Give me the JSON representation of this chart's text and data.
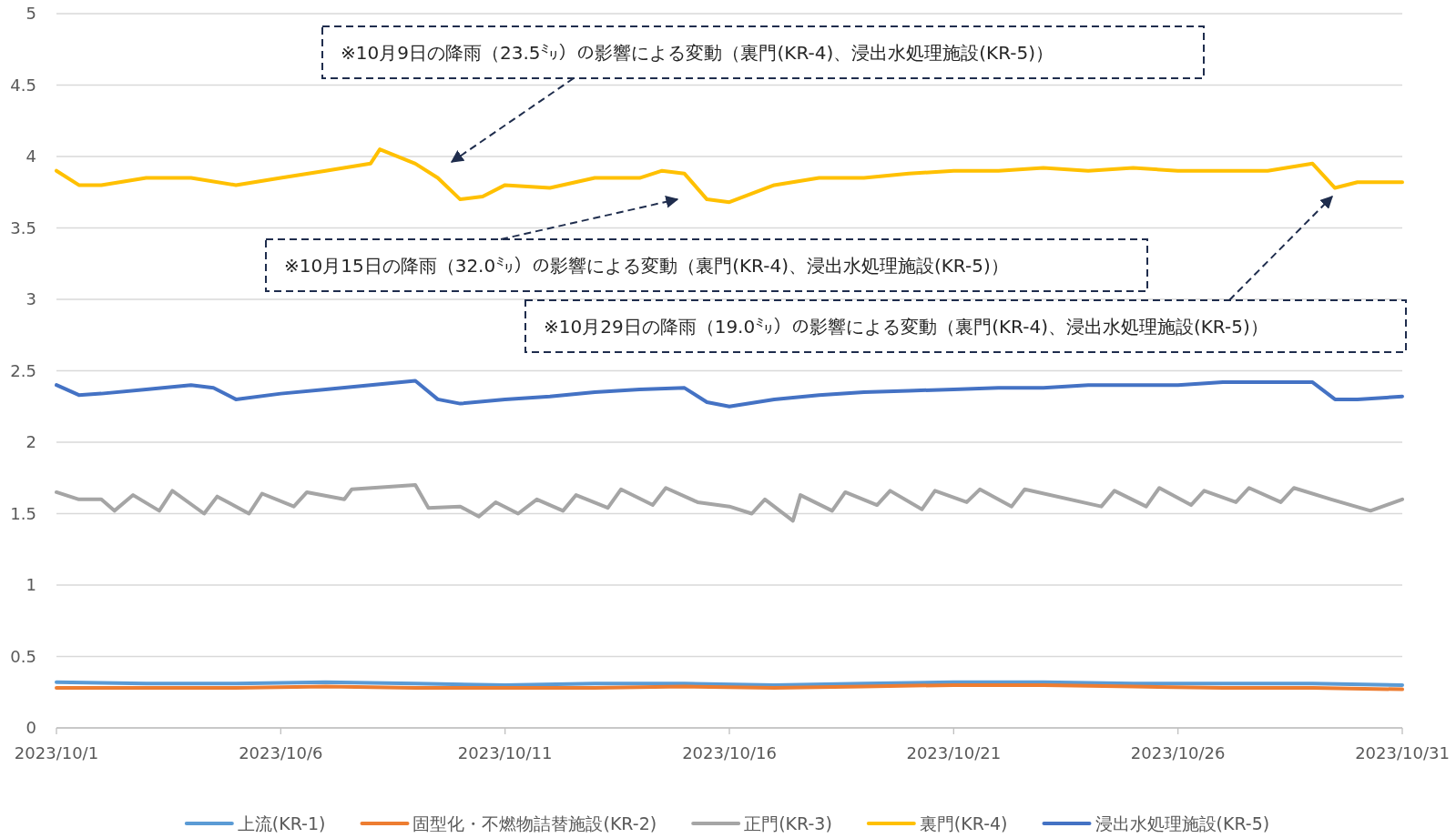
{
  "chart_data": {
    "type": "line",
    "xlim": [
      "2023-10-01",
      "2023-10-31"
    ],
    "xticks": [
      {
        "value": "2023-10-01",
        "label": "2023/10/1"
      },
      {
        "value": "2023-10-06",
        "label": "2023/10/6"
      },
      {
        "value": "2023-10-11",
        "label": "2023/10/11"
      },
      {
        "value": "2023-10-16",
        "label": "2023/10/16"
      },
      {
        "value": "2023-10-21",
        "label": "2023/10/21"
      },
      {
        "value": "2023-10-26",
        "label": "2023/10/26"
      },
      {
        "value": "2023-10-31",
        "label": "2023/10/31"
      }
    ],
    "ylim": [
      0,
      5
    ],
    "yticks": [
      0,
      0.5,
      1,
      1.5,
      2,
      2.5,
      3,
      3.5,
      4,
      4.5,
      5
    ],
    "grid": "y",
    "legend": "bottom",
    "series": [
      {
        "name": "上流(KR-1)",
        "color": "#5b9bd5",
        "x": [
          "2023-10-01",
          "2023-10-03",
          "2023-10-05",
          "2023-10-07",
          "2023-10-09",
          "2023-10-11",
          "2023-10-13",
          "2023-10-15",
          "2023-10-17",
          "2023-10-19",
          "2023-10-21",
          "2023-10-23",
          "2023-10-25",
          "2023-10-27",
          "2023-10-29",
          "2023-10-31"
        ],
        "values": [
          0.32,
          0.31,
          0.31,
          0.32,
          0.31,
          0.3,
          0.31,
          0.31,
          0.3,
          0.31,
          0.32,
          0.32,
          0.31,
          0.31,
          0.31,
          0.3
        ]
      },
      {
        "name": "固型化・不燃物詰替施設(KR-2)",
        "color": "#ed7d31",
        "x": [
          "2023-10-01",
          "2023-10-03",
          "2023-10-05",
          "2023-10-07",
          "2023-10-09",
          "2023-10-11",
          "2023-10-13",
          "2023-10-15",
          "2023-10-17",
          "2023-10-19",
          "2023-10-21",
          "2023-10-23",
          "2023-10-25",
          "2023-10-27",
          "2023-10-29",
          "2023-10-31"
        ],
        "values": [
          0.28,
          0.28,
          0.28,
          0.29,
          0.28,
          0.28,
          0.28,
          0.29,
          0.28,
          0.29,
          0.3,
          0.3,
          0.29,
          0.28,
          0.28,
          0.27
        ]
      },
      {
        "name": "正門(KR-3)",
        "color": "#a5a5a5",
        "x": [
          "2023-10-01",
          "2023-10-01T12:00",
          "2023-10-02",
          "2023-10-02T07:00",
          "2023-10-02T17:00",
          "2023-10-03T07:00",
          "2023-10-03T14:00",
          "2023-10-04T07:00",
          "2023-10-04T14:00",
          "2023-10-05T07:00",
          "2023-10-05T14:00",
          "2023-10-06T07:00",
          "2023-10-06T14:00",
          "2023-10-07T10:00",
          "2023-10-07T14:00",
          "2023-10-09",
          "2023-10-09T07:00",
          "2023-10-10",
          "2023-10-10T10:00",
          "2023-10-10T19:00",
          "2023-10-11T07:00",
          "2023-10-11T17:00",
          "2023-10-12T07:00",
          "2023-10-12T14:00",
          "2023-10-13T07:00",
          "2023-10-13T14:00",
          "2023-10-14T07:00",
          "2023-10-14T14:00",
          "2023-10-15T07:00",
          "2023-10-16",
          "2023-10-16T12:00",
          "2023-10-16T19:00",
          "2023-10-17T10:00",
          "2023-10-17T14:00",
          "2023-10-18T07:00",
          "2023-10-18T14:00",
          "2023-10-19T07:00",
          "2023-10-19T14:00",
          "2023-10-20T07:00",
          "2023-10-20T14:00",
          "2023-10-21T07:00",
          "2023-10-21T14:00",
          "2023-10-22T07:00",
          "2023-10-22T14:00",
          "2023-10-24T07:00",
          "2023-10-24T14:00",
          "2023-10-25T07:00",
          "2023-10-25T14:00",
          "2023-10-26T07:00",
          "2023-10-26T14:00",
          "2023-10-27T07:00",
          "2023-10-27T14:00",
          "2023-10-28T07:00",
          "2023-10-28T14:00",
          "2023-10-29T10:00",
          "2023-10-30T07:00",
          "2023-10-31"
        ],
        "values": [
          1.65,
          1.6,
          1.6,
          1.52,
          1.63,
          1.52,
          1.66,
          1.5,
          1.62,
          1.5,
          1.64,
          1.55,
          1.65,
          1.6,
          1.67,
          1.7,
          1.54,
          1.55,
          1.48,
          1.58,
          1.5,
          1.6,
          1.52,
          1.63,
          1.54,
          1.67,
          1.56,
          1.68,
          1.58,
          1.55,
          1.5,
          1.6,
          1.45,
          1.63,
          1.52,
          1.65,
          1.56,
          1.66,
          1.53,
          1.66,
          1.58,
          1.67,
          1.55,
          1.67,
          1.55,
          1.66,
          1.55,
          1.68,
          1.56,
          1.66,
          1.58,
          1.68,
          1.58,
          1.68,
          1.6,
          1.52,
          1.6
        ]
      },
      {
        "name": "裏門(KR-4)",
        "color": "#ffc000",
        "x": [
          "2023-10-01",
          "2023-10-01T12:00",
          "2023-10-02",
          "2023-10-03",
          "2023-10-04",
          "2023-10-05",
          "2023-10-06",
          "2023-10-07",
          "2023-10-08",
          "2023-10-08T05:00",
          "2023-10-09",
          "2023-10-09T12:00",
          "2023-10-10",
          "2023-10-10T12:00",
          "2023-10-11",
          "2023-10-12",
          "2023-10-13",
          "2023-10-14",
          "2023-10-14T12:00",
          "2023-10-15",
          "2023-10-15T12:00",
          "2023-10-16",
          "2023-10-17",
          "2023-10-18",
          "2023-10-19",
          "2023-10-20",
          "2023-10-21",
          "2023-10-22",
          "2023-10-23",
          "2023-10-24",
          "2023-10-25",
          "2023-10-26",
          "2023-10-27",
          "2023-10-28",
          "2023-10-29",
          "2023-10-29T12:00",
          "2023-10-30",
          "2023-10-31"
        ],
        "values": [
          3.9,
          3.8,
          3.8,
          3.85,
          3.85,
          3.8,
          3.85,
          3.9,
          3.95,
          4.05,
          3.95,
          3.85,
          3.7,
          3.72,
          3.8,
          3.78,
          3.85,
          3.85,
          3.9,
          3.88,
          3.7,
          3.68,
          3.8,
          3.85,
          3.85,
          3.88,
          3.9,
          3.9,
          3.92,
          3.9,
          3.92,
          3.9,
          3.9,
          3.9,
          3.95,
          3.78,
          3.82,
          3.82
        ]
      },
      {
        "name": "浸出水処理施設(KR-5)",
        "color": "#4472c4",
        "x": [
          "2023-10-01",
          "2023-10-01T12:00",
          "2023-10-02",
          "2023-10-03",
          "2023-10-04",
          "2023-10-04T12:00",
          "2023-10-05",
          "2023-10-06",
          "2023-10-07",
          "2023-10-08",
          "2023-10-09",
          "2023-10-09T12:00",
          "2023-10-10",
          "2023-10-11",
          "2023-10-12",
          "2023-10-13",
          "2023-10-14",
          "2023-10-15",
          "2023-10-15T12:00",
          "2023-10-16",
          "2023-10-17",
          "2023-10-18",
          "2023-10-19",
          "2023-10-20",
          "2023-10-21",
          "2023-10-22",
          "2023-10-23",
          "2023-10-24",
          "2023-10-25",
          "2023-10-26",
          "2023-10-27",
          "2023-10-28",
          "2023-10-29",
          "2023-10-29T12:00",
          "2023-10-30",
          "2023-10-31"
        ],
        "values": [
          2.4,
          2.33,
          2.34,
          2.37,
          2.4,
          2.38,
          2.3,
          2.34,
          2.37,
          2.4,
          2.43,
          2.3,
          2.27,
          2.3,
          2.32,
          2.35,
          2.37,
          2.38,
          2.28,
          2.25,
          2.3,
          2.33,
          2.35,
          2.36,
          2.37,
          2.38,
          2.38,
          2.4,
          2.4,
          2.4,
          2.42,
          2.42,
          2.42,
          2.3,
          2.3,
          2.32
        ]
      }
    ],
    "annotations": [
      "※10月9日の降雨（23.5㍉）の影響による変動（裏門(KR-4)、浸出水処理施設(KR-5)）",
      "※10月15日の降雨（32.0㍉）の影響による変動（裏門(KR-4)、浸出水処理施設(KR-5)）",
      "※10月29日の降雨（19.0㍉）の影響による変動（裏門(KR-4)、浸出水処理施設(KR-5)）"
    ]
  }
}
